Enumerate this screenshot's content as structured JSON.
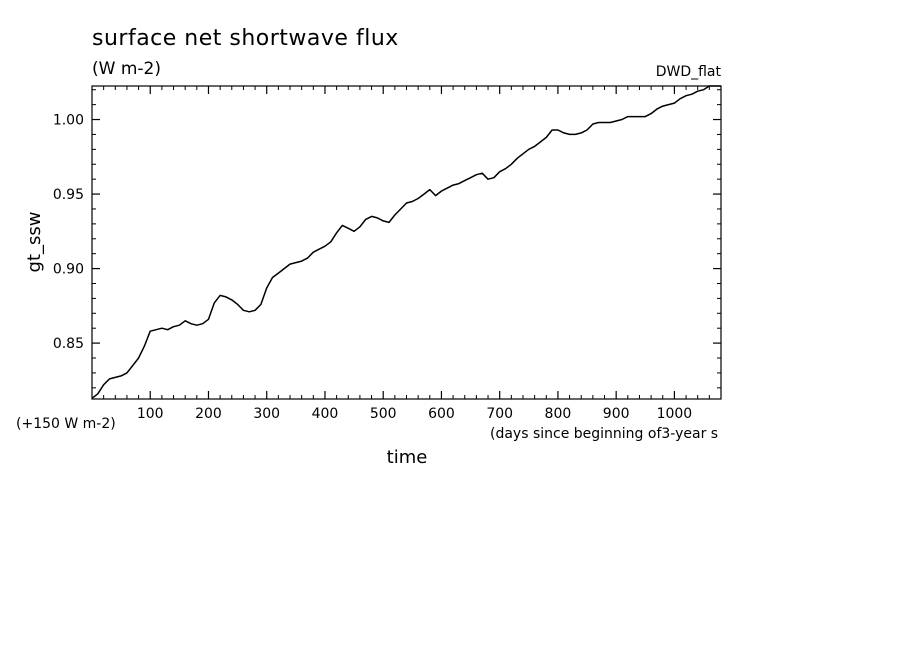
{
  "chart_data": {
    "type": "line",
    "title": "surface net shortwave flux",
    "subtitle": "(W m-2)",
    "run_label": "DWD_flat",
    "ylabel": "gt_ssw",
    "xlabel": "time",
    "xunit": "(days since beginning of3-year s",
    "offset_note": "(+150 W m-2)",
    "xlim": [
      0,
      1080
    ],
    "ylim": [
      0.8125,
      1.0225
    ],
    "xticks": [
      100,
      200,
      300,
      400,
      500,
      600,
      700,
      800,
      900,
      1000
    ],
    "xtick_labels": [
      "100",
      "200",
      "300",
      "400",
      "500",
      "600",
      "700",
      "800",
      "900",
      "1000"
    ],
    "yticks": [
      0.85,
      0.9,
      0.95,
      1.0
    ],
    "ytick_labels": [
      "0.85",
      "0.90",
      "0.95",
      "1.00"
    ],
    "grid": false,
    "series": [
      {
        "color": "#000000",
        "x": [
          0,
          10,
          20,
          30,
          40,
          50,
          60,
          70,
          80,
          90,
          100,
          110,
          120,
          130,
          140,
          150,
          160,
          170,
          180,
          190,
          200,
          210,
          220,
          230,
          240,
          250,
          260,
          270,
          280,
          290,
          300,
          310,
          320,
          330,
          340,
          350,
          360,
          370,
          380,
          390,
          400,
          410,
          420,
          430,
          440,
          450,
          460,
          470,
          480,
          490,
          500,
          510,
          520,
          530,
          540,
          550,
          560,
          570,
          580,
          590,
          600,
          610,
          620,
          630,
          640,
          650,
          660,
          670,
          680,
          690,
          700,
          710,
          720,
          730,
          740,
          750,
          760,
          770,
          780,
          790,
          800,
          810,
          820,
          830,
          840,
          850,
          860,
          870,
          880,
          890,
          900,
          910,
          920,
          930,
          940,
          950,
          960,
          970,
          980,
          990,
          1000,
          1010,
          1020,
          1030,
          1040,
          1050,
          1060,
          1070,
          1080
        ],
        "y": [
          0.813,
          0.816,
          0.822,
          0.826,
          0.827,
          0.828,
          0.83,
          0.835,
          0.84,
          0.848,
          0.858,
          0.859,
          0.86,
          0.859,
          0.861,
          0.862,
          0.865,
          0.863,
          0.862,
          0.863,
          0.866,
          0.877,
          0.882,
          0.881,
          0.879,
          0.876,
          0.872,
          0.871,
          0.872,
          0.876,
          0.887,
          0.894,
          0.897,
          0.9,
          0.903,
          0.904,
          0.905,
          0.907,
          0.911,
          0.913,
          0.915,
          0.918,
          0.924,
          0.929,
          0.927,
          0.925,
          0.928,
          0.933,
          0.935,
          0.934,
          0.932,
          0.931,
          0.936,
          0.94,
          0.944,
          0.945,
          0.947,
          0.95,
          0.953,
          0.949,
          0.952,
          0.954,
          0.956,
          0.957,
          0.959,
          0.961,
          0.963,
          0.964,
          0.96,
          0.961,
          0.965,
          0.967,
          0.97,
          0.974,
          0.977,
          0.98,
          0.982,
          0.985,
          0.988,
          0.993,
          0.993,
          0.991,
          0.99,
          0.99,
          0.991,
          0.993,
          0.997,
          0.998,
          0.998,
          0.998,
          0.999,
          1.0,
          1.002,
          1.002,
          1.002,
          1.002,
          1.004,
          1.007,
          1.009,
          1.01,
          1.011,
          1.014,
          1.016,
          1.017,
          1.019,
          1.02,
          1.023,
          1.026,
          1.028
        ]
      }
    ]
  }
}
